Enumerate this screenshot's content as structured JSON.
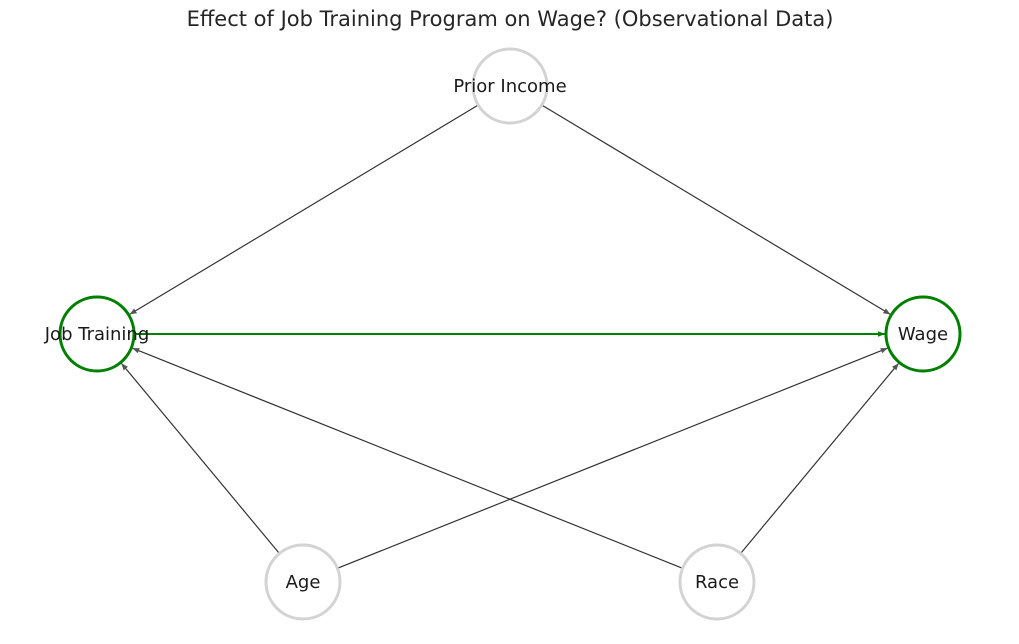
{
  "title": "Effect of Job Training Program on Wage? (Observational Data)",
  "colors": {
    "highlight": "#008000",
    "node_border": "#d3d3d3",
    "edge": "#333333",
    "arrowhead": "#555555"
  },
  "nodes": [
    {
      "id": "prior_income",
      "label": "Prior Income",
      "highlighted": false
    },
    {
      "id": "job_training",
      "label": "Job Training",
      "highlighted": true
    },
    {
      "id": "wage",
      "label": "Wage",
      "highlighted": true
    },
    {
      "id": "age",
      "label": "Age",
      "highlighted": false
    },
    {
      "id": "race",
      "label": "Race",
      "highlighted": false
    }
  ],
  "edges": [
    {
      "from": "prior_income",
      "to": "job_training",
      "highlighted": false
    },
    {
      "from": "prior_income",
      "to": "wage",
      "highlighted": false
    },
    {
      "from": "job_training",
      "to": "wage",
      "highlighted": true
    },
    {
      "from": "age",
      "to": "job_training",
      "highlighted": false
    },
    {
      "from": "age",
      "to": "wage",
      "highlighted": false
    },
    {
      "from": "race",
      "to": "job_training",
      "highlighted": false
    },
    {
      "from": "race",
      "to": "wage",
      "highlighted": false
    }
  ]
}
